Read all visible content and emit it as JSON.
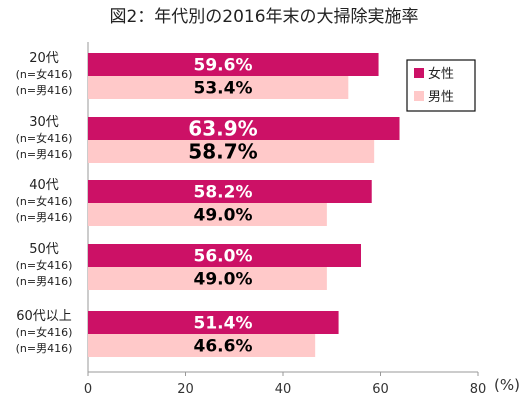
{
  "chart_data": {
    "type": "bar",
    "orientation": "horizontal",
    "title": "図2：年代別の2016年末の大掃除実施率",
    "categories": [
      {
        "label": "20代",
        "sub1": "(n=女416)",
        "sub2": "(n=男416)"
      },
      {
        "label": "30代",
        "sub1": "(n=女416)",
        "sub2": "(n=男416)"
      },
      {
        "label": "40代",
        "sub1": "(n=女416)",
        "sub2": "(n=男416)"
      },
      {
        "label": "50代",
        "sub1": "(n=女416)",
        "sub2": "(n=男416)"
      },
      {
        "label": "60代以上",
        "sub1": "(n=女416)",
        "sub2": "(n=男416)"
      }
    ],
    "series": [
      {
        "name": "女性",
        "color": "#cc1166",
        "label_color": "#ffffff",
        "values": [
          59.6,
          63.9,
          58.2,
          56.0,
          51.4
        ],
        "value_labels": [
          "59.6%",
          "63.9%",
          "58.2%",
          "56.0%",
          "51.4%"
        ]
      },
      {
        "name": "男性",
        "color": "#ffc9c9",
        "label_color": "#000000",
        "values": [
          53.4,
          58.7,
          49.0,
          49.0,
          46.6
        ],
        "value_labels": [
          "53.4%",
          "58.7%",
          "49.0%",
          "49.0%",
          "46.6%"
        ]
      }
    ],
    "xlim": [
      0,
      80
    ],
    "xticks": [
      "0",
      "20",
      "40",
      "60",
      "80"
    ],
    "unit_label": "(%)",
    "grid": false,
    "legend_position": "top-right"
  }
}
